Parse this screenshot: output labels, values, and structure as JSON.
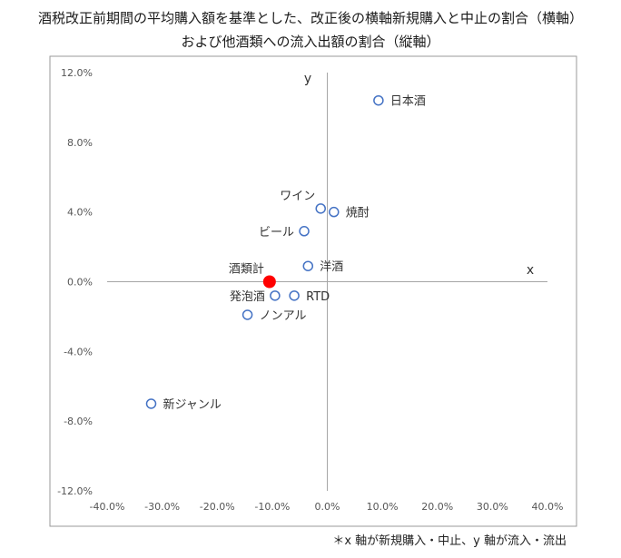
{
  "title_line1": "酒税改正前期間の平均購入額を基準とした、改正後の横軸新規購入と中止の割合（横軸）",
  "title_line2": "および他酒類への流入出額の割合（縦軸）",
  "footnote": "＊x 軸が新規購入・中止、y 軸が流入・流出",
  "chart_data": {
    "type": "scatter",
    "xlim": [
      -40,
      40
    ],
    "ylim": [
      -12,
      12
    ],
    "xticks": [
      -40,
      -30,
      -20,
      -10,
      0,
      10,
      20,
      30,
      40
    ],
    "yticks": [
      12,
      8,
      4,
      0,
      -4,
      -8,
      -12
    ],
    "xtick_labels": [
      "-40.0%",
      "-30.0%",
      "-20.0%",
      "-10.0%",
      "0.0%",
      "10.0%",
      "20.0%",
      "30.0%",
      "40.0%"
    ],
    "ytick_labels": [
      "12.0%",
      "8.0%",
      "4.0%",
      "0.0%",
      "-4.0%",
      "-8.0%",
      "-12.0%"
    ],
    "xlabel": "x",
    "ylabel": "y",
    "grid": false,
    "points": [
      {
        "label": "日本酒",
        "x": 9.3,
        "y": 10.4,
        "pos": "right"
      },
      {
        "label": "ワイン",
        "x": -1.2,
        "y": 4.2,
        "pos": "left-up"
      },
      {
        "label": "焼酎",
        "x": 1.2,
        "y": 4.0,
        "pos": "right"
      },
      {
        "label": "ビール",
        "x": -4.2,
        "y": 2.9,
        "pos": "left"
      },
      {
        "label": "洋酒",
        "x": -3.5,
        "y": 0.9,
        "pos": "right"
      },
      {
        "label": "酒類計",
        "x": -10.5,
        "y": 0.0,
        "pos": "left-up",
        "highlight": true
      },
      {
        "label": "発泡酒",
        "x": -9.5,
        "y": -0.8,
        "pos": "left"
      },
      {
        "label": "RTD",
        "x": -6.0,
        "y": -0.8,
        "pos": "right"
      },
      {
        "label": "ノンアル",
        "x": -14.5,
        "y": -1.9,
        "pos": "right"
      },
      {
        "label": "新ジャンル",
        "x": -32.0,
        "y": -7.0,
        "pos": "right"
      }
    ],
    "marker_color": "#4472c4",
    "highlight_color": "#ff0000"
  }
}
